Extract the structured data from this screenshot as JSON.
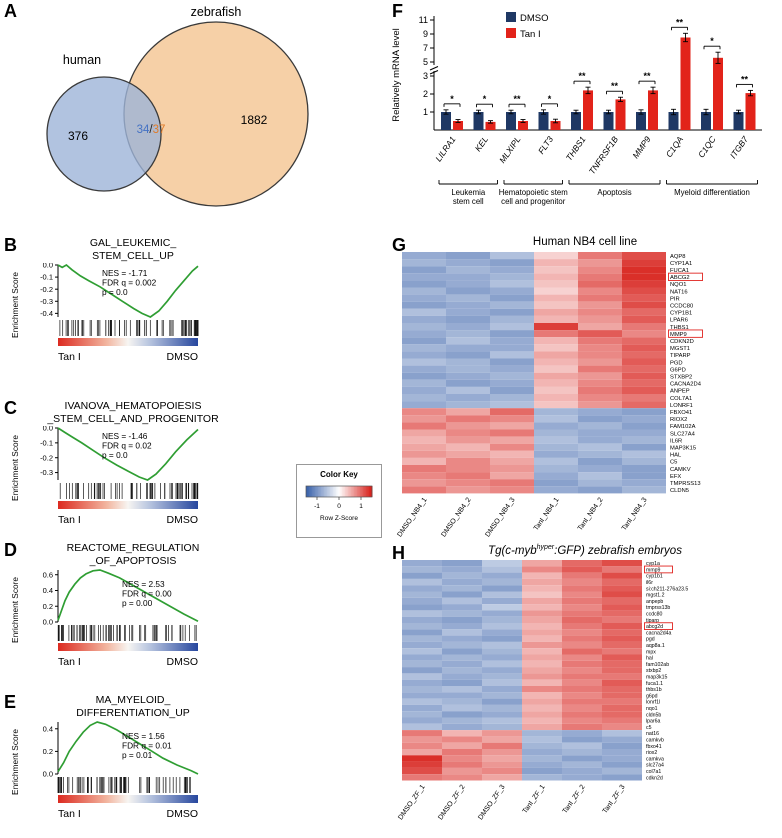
{
  "panel_labels": [
    "A",
    "B",
    "C",
    "D",
    "E",
    "F",
    "G",
    "H"
  ],
  "color_key": {
    "title": "Color Key",
    "axis_label": "Row Z-Score",
    "ticks": [
      "-1",
      "0",
      "1"
    ]
  },
  "chart_data": [
    {
      "id": "venn",
      "type": "venn",
      "sets": [
        {
          "label": "human",
          "count": "376",
          "color": "#9db4d8"
        },
        {
          "label": "zebrafish",
          "count": "1882",
          "color": "#f5cda2"
        }
      ],
      "overlap": {
        "left": "34",
        "sep": "/",
        "right": "37",
        "left_color": "#4472c4",
        "right_color": "#e07b28"
      }
    },
    {
      "id": "gsea-b",
      "type": "line",
      "panel": "b",
      "direction": "down",
      "title_lines": [
        "GAL_LEUKEMIC_",
        "STEM_CELL_UP"
      ],
      "stats": [
        "NES = -1.71",
        "FDR q = 0.002",
        "p = 0.0"
      ],
      "ylabel": "Enrichment Score",
      "yticks": [
        0,
        -0.1,
        -0.2,
        -0.3,
        -0.4
      ],
      "x_left_label": "Tan I",
      "x_right_label": "DMSO",
      "curve": [
        [
          0,
          0
        ],
        [
          0.03,
          -0.02
        ],
        [
          0.06,
          0
        ],
        [
          0.1,
          -0.04
        ],
        [
          0.16,
          -0.09
        ],
        [
          0.22,
          -0.13
        ],
        [
          0.3,
          -0.18
        ],
        [
          0.38,
          -0.24
        ],
        [
          0.46,
          -0.3
        ],
        [
          0.54,
          -0.36
        ],
        [
          0.6,
          -0.4
        ],
        [
          0.66,
          -0.43
        ],
        [
          0.72,
          -0.38
        ],
        [
          0.78,
          -0.3
        ],
        [
          0.84,
          -0.21
        ],
        [
          0.9,
          -0.13
        ],
        [
          0.96,
          -0.05
        ],
        [
          1,
          -0.01
        ]
      ]
    },
    {
      "id": "gsea-c",
      "type": "line",
      "panel": "c",
      "direction": "down",
      "title_lines": [
        "IVANOVA_HEMATOPOIESIS",
        "_STEM_CELL_AND_PROGENITOR"
      ],
      "stats": [
        "NES = -1.46",
        "FDR q = 0.02",
        "p = 0.0"
      ],
      "ylabel": "Enrichment Score",
      "yticks": [
        0,
        -0.1,
        -0.2,
        -0.3
      ],
      "x_left_label": "Tan I",
      "x_right_label": "DMSO",
      "curve": [
        [
          0,
          0
        ],
        [
          0.05,
          -0.03
        ],
        [
          0.1,
          -0.06
        ],
        [
          0.17,
          -0.1
        ],
        [
          0.25,
          -0.15
        ],
        [
          0.33,
          -0.2
        ],
        [
          0.42,
          -0.25
        ],
        [
          0.5,
          -0.29
        ],
        [
          0.58,
          -0.33
        ],
        [
          0.64,
          -0.35
        ],
        [
          0.7,
          -0.31
        ],
        [
          0.77,
          -0.24
        ],
        [
          0.84,
          -0.16
        ],
        [
          0.92,
          -0.08
        ],
        [
          1,
          -0.01
        ]
      ]
    },
    {
      "id": "gsea-d",
      "type": "line",
      "panel": "d",
      "direction": "up",
      "title_lines": [
        "REACTOME_REGULATION",
        "_OF_APOPTOSIS"
      ],
      "stats": [
        "NES = 2.53",
        "FDR q = 0.00",
        "p = 0.00"
      ],
      "ylabel": "Enrichment Score",
      "yticks": [
        0.6,
        0.4,
        0.2,
        0
      ],
      "x_left_label": "Tan I",
      "x_right_label": "DMSO",
      "curve": [
        [
          0,
          0.02
        ],
        [
          0.02,
          0.12
        ],
        [
          0.05,
          0.27
        ],
        [
          0.08,
          0.38
        ],
        [
          0.12,
          0.48
        ],
        [
          0.16,
          0.56
        ],
        [
          0.2,
          0.61
        ],
        [
          0.25,
          0.65
        ],
        [
          0.3,
          0.66
        ],
        [
          0.36,
          0.62
        ],
        [
          0.44,
          0.56
        ],
        [
          0.52,
          0.48
        ],
        [
          0.6,
          0.4
        ],
        [
          0.7,
          0.3
        ],
        [
          0.8,
          0.2
        ],
        [
          0.9,
          0.1
        ],
        [
          1,
          0.01
        ]
      ]
    },
    {
      "id": "gsea-e",
      "type": "line",
      "panel": "e",
      "direction": "up",
      "title_lines": [
        "MA_MYELOID_",
        "DIFFERENTIATION_UP"
      ],
      "stats": [
        "NES = 1.56",
        "FDR q = 0.01",
        "p = 0.01"
      ],
      "ylabel": "Enrichment Score",
      "yticks": [
        0.4,
        0.2,
        0
      ],
      "x_left_label": "Tan I",
      "x_right_label": "DMSO",
      "curve": [
        [
          0,
          0.02
        ],
        [
          0.04,
          0.1
        ],
        [
          0.08,
          0.2
        ],
        [
          0.13,
          0.29
        ],
        [
          0.18,
          0.37
        ],
        [
          0.23,
          0.43
        ],
        [
          0.28,
          0.46
        ],
        [
          0.34,
          0.44
        ],
        [
          0.42,
          0.39
        ],
        [
          0.5,
          0.33
        ],
        [
          0.58,
          0.27
        ],
        [
          0.66,
          0.21
        ],
        [
          0.75,
          0.14
        ],
        [
          0.85,
          0.08
        ],
        [
          0.95,
          0.03
        ],
        [
          1,
          0
        ]
      ]
    },
    {
      "id": "bars",
      "type": "bar",
      "ylabel": "Relatively mRNA level",
      "yticks": [
        1,
        2,
        3,
        5,
        7,
        9,
        11
      ],
      "categories": [
        "LILRA1",
        "KEL",
        "MLXIPL",
        "FLT3",
        "THBS1",
        "TNFRSF1B",
        "MMP9",
        "C1QA",
        "C1QC",
        "ITGB7"
      ],
      "series": [
        {
          "name": "DMSO",
          "color": "#1f3864",
          "values": [
            1,
            1,
            1,
            1,
            1,
            1,
            1,
            1,
            1,
            1
          ],
          "errors": [
            0.12,
            0.1,
            0.1,
            0.12,
            0.1,
            0.1,
            0.12,
            0.15,
            0.15,
            0.1
          ]
        },
        {
          "name": "Tan I",
          "color": "#e2231a",
          "values": [
            0.5,
            0.45,
            0.5,
            0.5,
            2.2,
            1.7,
            2.2,
            8.5,
            5.6,
            2.05
          ],
          "errors": [
            0.08,
            0.07,
            0.08,
            0.1,
            0.18,
            0.12,
            0.18,
            0.6,
            0.8,
            0.15
          ]
        }
      ],
      "significance": [
        "*",
        "*",
        "**",
        "*",
        "**",
        "**",
        "**",
        "**",
        "*",
        "**"
      ],
      "groups": [
        {
          "label_lines": [
            "Leukemia",
            "stem cell"
          ],
          "from": 0,
          "to": 1
        },
        {
          "label_lines": [
            "Hematopoietic stem",
            "cell and progenitor"
          ],
          "from": 2,
          "to": 3
        },
        {
          "label_lines": [
            "Apoptosis"
          ],
          "from": 4,
          "to": 6
        },
        {
          "label_lines": [
            "Myeloid differentiation"
          ],
          "from": 7,
          "to": 9
        }
      ]
    },
    {
      "id": "hm-nb4",
      "type": "heatmap",
      "title": "Human NB4 cell line",
      "columns": [
        "DMSO_NB4_1",
        "DMSO_NB4_2",
        "DMSO_NB4_3",
        "TanI_NB4_1",
        "TanI_NB4_2",
        "TanI_NB4_3"
      ],
      "boxed": [
        "ABCG2",
        "MMP9"
      ],
      "genes": [
        "AQP8",
        "CYP1A1",
        "FUCA1",
        "ABCG2",
        "NQO1",
        "NAT16",
        "PIR",
        "CCDC80",
        "CYP1B1",
        "LPAR6",
        "THBS1",
        "MMP9",
        "CDKN2D",
        "MGST1",
        "TIPARP",
        "PGD",
        "G6PD",
        "STXBP2",
        "CACNA2D4",
        "ANPEP",
        "COL7A1",
        "LONRF1",
        "FBXO41",
        "RIOX2",
        "FAM102A",
        "SLC27A4",
        "IL6R",
        "MAP3K15",
        "HAL",
        "C5",
        "CAMKV",
        "EFX",
        "TMPRSS13",
        "CLDN5"
      ],
      "values": [
        [
          -0.8,
          -0.9,
          -0.6,
          0.3,
          0.9,
          1.2
        ],
        [
          -0.7,
          -0.8,
          -0.9,
          0.5,
          0.7,
          1.3
        ],
        [
          -0.9,
          -0.7,
          -0.8,
          0.4,
          0.8,
          1.4
        ],
        [
          -0.8,
          -0.8,
          -0.7,
          0.5,
          0.9,
          1.4
        ],
        [
          -0.9,
          -0.8,
          -0.6,
          0.4,
          1.0,
          1.3
        ],
        [
          -0.7,
          -0.9,
          -0.8,
          0.3,
          0.8,
          1.2
        ],
        [
          -0.8,
          -0.7,
          -0.9,
          0.5,
          0.9,
          1.1
        ],
        [
          -0.9,
          -0.8,
          -0.7,
          0.4,
          0.7,
          1.2
        ],
        [
          -0.6,
          -0.8,
          -0.9,
          0.6,
          0.8,
          1.0
        ],
        [
          -0.8,
          -0.9,
          -0.7,
          0.5,
          0.7,
          1.1
        ],
        [
          -0.7,
          -0.8,
          -0.6,
          1.3,
          0.6,
          0.9
        ],
        [
          -0.8,
          -0.7,
          -0.9,
          0.9,
          1.1,
          0.8
        ],
        [
          -0.9,
          -0.6,
          -0.8,
          0.5,
          0.9,
          1.0
        ],
        [
          -0.7,
          -0.8,
          -0.8,
          0.4,
          0.8,
          1.1
        ],
        [
          -0.8,
          -0.9,
          -0.6,
          0.6,
          0.8,
          1.0
        ],
        [
          -0.6,
          -0.7,
          -0.9,
          0.5,
          0.7,
          1.1
        ],
        [
          -0.8,
          -0.7,
          -0.8,
          0.4,
          0.9,
          1.0
        ],
        [
          -0.9,
          -0.8,
          -0.7,
          0.6,
          0.7,
          1.1
        ],
        [
          -0.7,
          -0.9,
          -0.8,
          0.5,
          0.8,
          1.0
        ],
        [
          -0.8,
          -0.6,
          -0.9,
          0.4,
          0.9,
          1.1
        ],
        [
          -0.7,
          -0.8,
          -0.7,
          0.5,
          0.8,
          0.9
        ],
        [
          -0.8,
          -0.7,
          -0.6,
          0.4,
          0.7,
          1.0
        ],
        [
          0.8,
          0.6,
          1.0,
          -0.7,
          -0.8,
          -0.9
        ],
        [
          0.7,
          0.9,
          0.8,
          -0.6,
          -0.9,
          -0.8
        ],
        [
          0.9,
          0.7,
          0.6,
          -0.8,
          -0.7,
          -0.9
        ],
        [
          0.6,
          0.8,
          0.9,
          -0.7,
          -0.8,
          -0.8
        ],
        [
          0.5,
          0.7,
          0.6,
          -0.6,
          -0.8,
          -0.7
        ],
        [
          0.6,
          0.5,
          0.8,
          -0.7,
          -0.6,
          -0.9
        ],
        [
          0.7,
          0.6,
          0.5,
          -0.8,
          -0.7,
          -0.6
        ],
        [
          0.5,
          0.8,
          0.6,
          -0.6,
          -0.9,
          -0.7
        ],
        [
          0.9,
          0.8,
          0.7,
          -0.7,
          -0.8,
          -0.9
        ],
        [
          0.8,
          0.9,
          0.6,
          -0.8,
          -0.6,
          -0.9
        ],
        [
          0.7,
          0.8,
          0.9,
          -0.9,
          -0.7,
          -0.8
        ],
        [
          0.9,
          0.7,
          0.8,
          -0.8,
          -0.9,
          -0.7
        ]
      ]
    },
    {
      "id": "hm-zf",
      "type": "heatmap",
      "title_pre": "Tg(c-myb",
      "title_sup": "hyper",
      "title_post": ":GFP) zebrafish embryos",
      "columns": [
        "DMSO_ZF_1",
        "DMSO_ZF_2",
        "DMSO_ZF_3",
        "TanI_ZF_1",
        "TanI_ZF_2",
        "TanI_ZF_3"
      ],
      "boxed": [
        "mmp9",
        "abcg2d"
      ],
      "genes": [
        "cyp1a",
        "mmp9",
        "cyp1b1",
        "il6r",
        "si:ch211-276a23.5",
        "mgst1.2",
        "anpepb",
        "tmprss13b",
        "ccdc80",
        "tiparp",
        "abcg2d",
        "cacna2d4a",
        "pgd",
        "aqp8a.1",
        "mpx",
        "hal",
        "fam102ab",
        "stxbp2",
        "map3k15",
        "fuca1.1",
        "thbs1b",
        "g6pd",
        "lonrf1l",
        "nqo1",
        "cldn5b",
        "lpar6a",
        "c5",
        "nat16",
        "camkvb",
        "fbxo41",
        "riox2",
        "camkva",
        "slc27a4",
        "col7a1",
        "cdkn2d"
      ],
      "values": [
        [
          -0.8,
          -0.9,
          -0.5,
          0.6,
          1.0,
          1.2
        ],
        [
          -0.7,
          -0.8,
          -0.6,
          0.8,
          1.1,
          0.9
        ],
        [
          -0.9,
          -0.7,
          -0.8,
          0.5,
          0.9,
          1.2
        ],
        [
          -0.6,
          -0.8,
          -0.7,
          0.6,
          0.8,
          1.0
        ],
        [
          -0.8,
          -0.7,
          -0.9,
          0.5,
          0.9,
          1.1
        ],
        [
          -0.7,
          -0.9,
          -0.6,
          0.4,
          0.8,
          1.2
        ],
        [
          -0.8,
          -0.6,
          -0.8,
          0.6,
          0.9,
          1.0
        ],
        [
          -0.9,
          -0.8,
          -0.5,
          0.5,
          0.8,
          1.1
        ],
        [
          -0.6,
          -0.7,
          -0.8,
          0.7,
          0.9,
          1.0
        ],
        [
          -0.8,
          -0.9,
          -0.7,
          0.6,
          1.0,
          0.9
        ],
        [
          -0.7,
          -0.8,
          -0.6,
          0.5,
          0.9,
          1.1
        ],
        [
          -0.9,
          -0.6,
          -0.8,
          0.6,
          0.8,
          1.0
        ],
        [
          -0.7,
          -0.8,
          -0.9,
          0.5,
          0.9,
          1.1
        ],
        [
          -0.8,
          -0.7,
          -0.6,
          0.7,
          0.8,
          1.0
        ],
        [
          -0.6,
          -0.9,
          -0.7,
          0.5,
          1.0,
          0.9
        ],
        [
          -0.8,
          -0.7,
          -0.8,
          0.6,
          0.8,
          1.1
        ],
        [
          -0.7,
          -0.8,
          -0.6,
          0.5,
          0.9,
          1.0
        ],
        [
          -0.9,
          -0.7,
          -0.8,
          0.6,
          0.8,
          1.0
        ],
        [
          -0.6,
          -0.8,
          -0.7,
          0.7,
          0.9,
          0.9
        ],
        [
          -0.8,
          -0.9,
          -0.6,
          0.5,
          0.8,
          1.1
        ],
        [
          -0.7,
          -0.6,
          -0.8,
          0.8,
          0.9,
          1.0
        ],
        [
          -0.8,
          -0.8,
          -0.7,
          0.5,
          0.8,
          1.0
        ],
        [
          -0.6,
          -0.7,
          -0.9,
          0.6,
          0.9,
          0.9
        ],
        [
          -0.8,
          -0.6,
          -0.7,
          0.5,
          0.8,
          1.0
        ],
        [
          -0.7,
          -0.9,
          -0.8,
          0.6,
          0.9,
          1.0
        ],
        [
          -0.8,
          -0.7,
          -0.6,
          0.5,
          0.8,
          0.9
        ],
        [
          -0.6,
          -0.8,
          -0.7,
          0.6,
          0.9,
          0.8
        ],
        [
          0.9,
          0.5,
          0.7,
          -0.7,
          -0.8,
          -0.6
        ],
        [
          0.7,
          0.8,
          0.6,
          -0.6,
          -0.9,
          -0.8
        ],
        [
          0.8,
          0.6,
          0.9,
          -0.7,
          -0.6,
          -0.9
        ],
        [
          0.6,
          0.9,
          0.7,
          -0.8,
          -0.7,
          -0.8
        ],
        [
          1.4,
          0.8,
          0.6,
          -0.7,
          -0.9,
          -0.8
        ],
        [
          1.3,
          0.9,
          0.7,
          -0.8,
          -0.7,
          -0.9
        ],
        [
          1.2,
          0.7,
          0.8,
          -0.9,
          -0.8,
          -0.7
        ],
        [
          0.9,
          0.8,
          0.6,
          -0.7,
          -0.8,
          -0.9
        ]
      ]
    }
  ]
}
